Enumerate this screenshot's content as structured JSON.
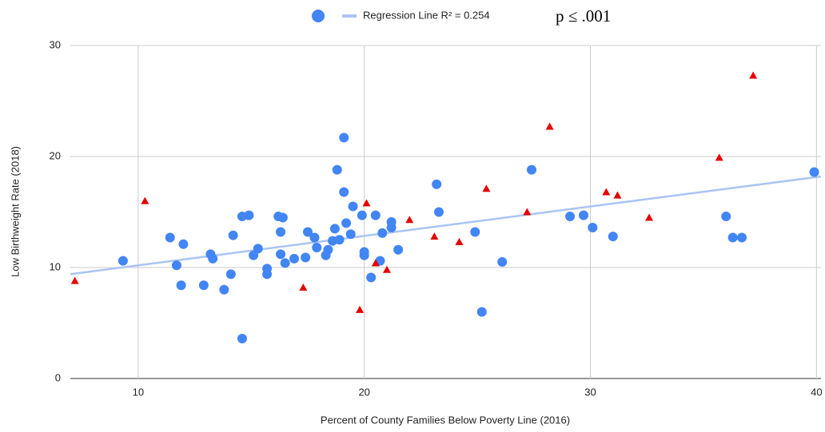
{
  "chart_data": {
    "type": "scatter",
    "annotation": "p ≤ .001",
    "x_label": "Percent of County Families Below Poverty Line (2016)",
    "y_label": "Low Birthweight Rate (2018)",
    "xlim": [
      7,
      40.2
    ],
    "ylim": [
      0,
      30
    ],
    "xticks": [
      10,
      20,
      30,
      40
    ],
    "yticks": [
      0,
      10,
      20,
      30
    ],
    "grid": true,
    "series": [
      {
        "color": "#4285f4",
        "marker": "circle",
        "x": [
          9.33,
          11.41,
          11.7,
          12.0,
          11.9,
          12.9,
          13.2,
          13.3,
          13.8,
          14.1,
          14.2,
          14.6,
          14.9,
          14.6,
          15.1,
          15.3,
          15.7,
          15.7,
          16.2,
          16.4,
          16.3,
          16.3,
          16.5,
          16.9,
          17.4,
          17.5,
          17.8,
          17.9,
          18.3,
          18.4,
          18.6,
          18.7,
          18.8,
          18.9,
          19.1,
          19.1,
          19.2,
          19.4,
          19.5,
          19.9,
          20.0,
          20.0,
          20.3,
          20.5,
          20.7,
          20.8,
          21.2,
          21.2,
          21.5,
          23.2,
          23.3,
          24.9,
          25.2,
          26.1,
          27.4,
          29.1,
          29.7,
          30.1,
          31.0,
          36.0,
          36.3,
          36.7,
          39.9
        ],
        "y": [
          10.6,
          12.7,
          10.2,
          12.1,
          8.4,
          8.4,
          11.2,
          10.8,
          8.0,
          9.4,
          12.9,
          14.6,
          14.7,
          3.6,
          11.1,
          11.7,
          9.4,
          9.9,
          14.6,
          14.5,
          13.2,
          11.2,
          10.4,
          10.8,
          10.9,
          13.2,
          12.7,
          11.8,
          11.1,
          11.6,
          12.4,
          13.5,
          18.8,
          12.5,
          21.7,
          16.8,
          14.0,
          13.0,
          15.5,
          14.7,
          11.4,
          11.1,
          9.1,
          14.7,
          10.6,
          13.1,
          14.1,
          13.6,
          11.6,
          17.5,
          15.0,
          13.2,
          6.0,
          10.5,
          18.8,
          14.6,
          14.7,
          13.6,
          12.8,
          14.6,
          12.7,
          12.7,
          18.6
        ]
      },
      {
        "color": "#e60000",
        "marker": "triangle",
        "x": [
          7.2,
          10.3,
          17.3,
          19.8,
          20.1,
          20.5,
          21.0,
          22.0,
          23.1,
          24.2,
          25.4,
          27.2,
          28.2,
          30.7,
          31.2,
          32.6,
          35.7,
          37.2
        ],
        "y": [
          8.8,
          16.0,
          8.2,
          6.2,
          15.8,
          10.4,
          9.8,
          14.3,
          12.8,
          12.3,
          17.1,
          15.0,
          22.7,
          16.8,
          16.5,
          14.5,
          19.9,
          27.3
        ]
      }
    ],
    "regression": {
      "name": "Regression Line R² = 0.254",
      "color": "#a9c4f5",
      "x": [
        7,
        40.2
      ],
      "y": [
        9.4,
        18.2
      ]
    }
  }
}
